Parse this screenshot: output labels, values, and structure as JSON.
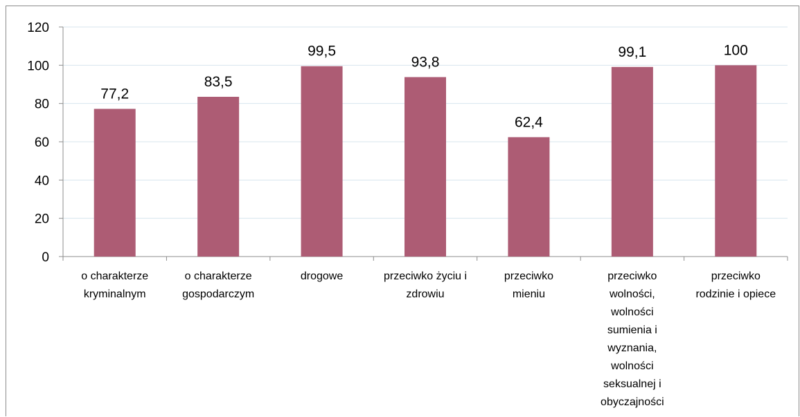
{
  "chart_data": {
    "type": "bar",
    "categories": [
      [
        "o charakterze",
        "kryminalnym"
      ],
      [
        "o charakterze",
        "gospodarczym"
      ],
      [
        "drogowe"
      ],
      [
        "przeciwko życiu i",
        "zdrowiu"
      ],
      [
        "przeciwko",
        "mieniu"
      ],
      [
        "przeciwko",
        "wolności,",
        "wolności",
        "sumienia i",
        "wyznania,",
        "wolności",
        "seksualnej i",
        "obyczajności"
      ],
      [
        "przeciwko",
        "rodzinie i opiece"
      ]
    ],
    "values": [
      77.2,
      83.5,
      99.5,
      93.8,
      62.4,
      99.1,
      100
    ],
    "value_labels": [
      "77,2",
      "83,5",
      "99,5",
      "93,8",
      "62,4",
      "99,1",
      "100"
    ],
    "yticks": [
      "0",
      "20",
      "40",
      "60",
      "80",
      "100",
      "120"
    ],
    "ylim": [
      0,
      120
    ],
    "title": "",
    "xlabel": "",
    "ylabel": "",
    "grid": true,
    "legend": "none",
    "bar_color": "#ad5c74",
    "grid_color": "#d7e4ee",
    "axis_color": "#8c8c8c"
  }
}
